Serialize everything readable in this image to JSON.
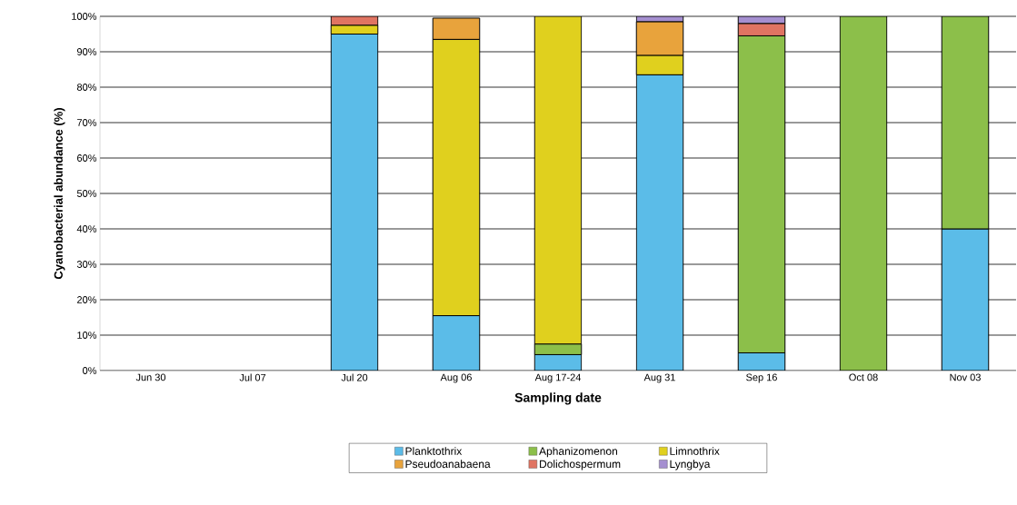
{
  "chart_data": {
    "type": "bar",
    "stacked": true,
    "xlabel": "Sampling date",
    "ylabel": "Cyanobacterial abundance (%)",
    "categories": [
      "Jun 30",
      "Jul 07",
      "Jul 20",
      "Aug 06",
      "Aug 17-24",
      "Aug 31",
      "Sep 16",
      "Oct 08",
      "Nov 03"
    ],
    "series": [
      {
        "name": "Planktothrix",
        "color": "#5bbce8",
        "values": [
          null,
          null,
          95,
          15.5,
          4.5,
          83.5,
          5,
          0,
          40
        ]
      },
      {
        "name": "Aphanizomenon",
        "color": "#8cbf4a",
        "values": [
          null,
          null,
          0,
          0,
          3,
          0,
          89.5,
          100,
          60
        ]
      },
      {
        "name": "Limnothrix",
        "color": "#e0d01e",
        "values": [
          null,
          null,
          2.5,
          78,
          92.5,
          5.5,
          0,
          0,
          0
        ]
      },
      {
        "name": "Pseudoanabaena",
        "color": "#e8a33c",
        "values": [
          null,
          null,
          0,
          6,
          0,
          9.5,
          0,
          0,
          0
        ]
      },
      {
        "name": "Dolichospermum",
        "color": "#e07462",
        "values": [
          null,
          null,
          2.5,
          0,
          0,
          0,
          3.5,
          0,
          0
        ]
      },
      {
        "name": "Lyngbya",
        "color": "#a58fd0",
        "values": [
          null,
          null,
          0,
          0,
          0,
          1.5,
          2,
          0,
          0
        ]
      }
    ],
    "ylim": [
      0,
      100
    ],
    "yticks": [
      {
        "value": 0,
        "label": "0%"
      },
      {
        "value": 10,
        "label": "10%"
      },
      {
        "value": 20,
        "label": "20%"
      },
      {
        "value": 30,
        "label": "30%"
      },
      {
        "value": 40,
        "label": "40%"
      },
      {
        "value": 50,
        "label": "50%"
      },
      {
        "value": 60,
        "label": "60%"
      },
      {
        "value": 70,
        "label": "70%"
      },
      {
        "value": 80,
        "label": "80%"
      },
      {
        "value": 90,
        "label": "90%"
      },
      {
        "value": 100,
        "label": "100%"
      }
    ],
    "grid": "y",
    "legend": "bottom"
  }
}
